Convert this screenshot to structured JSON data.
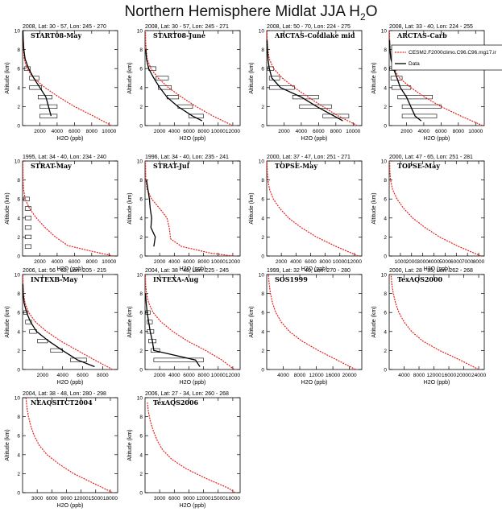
{
  "title_main": "Northern Hemisphere Midlat JJA H",
  "title_sub": "2",
  "title_end": "O",
  "ylabel": "Altitude (km)",
  "xlabel": "H2O (ppb)",
  "colors": {
    "model": "#e8201a",
    "obs": "#000000"
  },
  "legend": {
    "model": "CESM2.F2000climo.C96.C96.mg17.ir",
    "obs": "Data"
  },
  "chart_data": [
    {
      "type": "line",
      "header": "2008, Lat: 30 - 57, Lon: 245 - 270",
      "name": "START08-May",
      "xticks": [
        2000,
        4000,
        6000,
        8000,
        10000
      ],
      "xlim": [
        0,
        11000
      ],
      "ylim": [
        0,
        10
      ],
      "yticks": [
        0,
        2,
        4,
        6,
        8,
        10
      ],
      "model": {
        "x": [
          10300,
          8200,
          6000,
          4200,
          2600,
          1300,
          500,
          200,
          100,
          60,
          40
        ],
        "y": [
          0,
          1,
          2,
          3,
          4,
          5,
          6,
          7,
          8,
          9,
          10
        ]
      },
      "obs": {
        "x": [
          3300,
          3000,
          2700,
          2000,
          1300,
          700,
          300,
          150,
          80,
          50
        ],
        "y": [
          1,
          2,
          3,
          4,
          5,
          6,
          7,
          8,
          9,
          10
        ]
      },
      "boxes": [
        [
          1.0,
          2000,
          4000
        ],
        [
          2.0,
          2000,
          4000
        ],
        [
          3.0,
          1800,
          3400
        ],
        [
          4.0,
          800,
          2200
        ],
        [
          5.0,
          800,
          1900
        ],
        [
          6.0,
          200,
          900
        ]
      ]
    },
    {
      "type": "line",
      "header": "2008, Lat: 30 - 57, Lon: 245 - 271",
      "name": "START08-June",
      "xticks": [
        2000,
        4000,
        6000,
        8000,
        10000,
        12000
      ],
      "xlim": [
        0,
        13000
      ],
      "ylim": [
        0,
        10
      ],
      "yticks": [
        0,
        2,
        4,
        6,
        8,
        10
      ],
      "model": {
        "x": [
          12000,
          9300,
          7000,
          5000,
          3200,
          1800,
          800,
          300,
          150,
          80,
          50
        ],
        "y": [
          0,
          1,
          2,
          3,
          4,
          5,
          6,
          7,
          8,
          9,
          10
        ]
      },
      "obs": {
        "x": [
          7800,
          6500,
          4500,
          3000,
          2000,
          1200,
          500,
          200,
          100
        ],
        "y": [
          0.5,
          1,
          2,
          3,
          4,
          5,
          6,
          7,
          8
        ]
      },
      "boxes": [
        [
          1.0,
          6000,
          8000
        ],
        [
          2.0,
          4500,
          6500
        ],
        [
          3.0,
          3000,
          4600
        ],
        [
          4.0,
          1800,
          3600
        ],
        [
          5.0,
          1500,
          3200
        ],
        [
          6.0,
          500,
          1500
        ]
      ]
    },
    {
      "type": "line",
      "header": "2008, Lat: 50 - 70, Lon: 224 - 275",
      "name": "ARCTAS-Coldlake mid",
      "xticks": [
        2000,
        4000,
        6000,
        8000,
        10000
      ],
      "xlim": [
        0,
        11000
      ],
      "ylim": [
        0,
        10
      ],
      "yticks": [
        0,
        2,
        4,
        6,
        8,
        10
      ],
      "model": {
        "x": [
          10500,
          8300,
          6500,
          4800,
          3200,
          1800,
          800,
          300,
          120,
          60,
          40
        ],
        "y": [
          0,
          1,
          2,
          3,
          4,
          5,
          6,
          7,
          8,
          9,
          10
        ]
      },
      "obs": {
        "x": [
          8800,
          7800,
          5800,
          4000,
          1600,
          600,
          300,
          150,
          80,
          40
        ],
        "y": [
          0.5,
          1,
          2,
          3,
          4,
          5,
          6,
          7,
          8,
          9
        ]
      },
      "boxes": [
        [
          1.0,
          6500,
          9500
        ],
        [
          2.0,
          3800,
          7500
        ],
        [
          3.0,
          3000,
          6000
        ],
        [
          4.0,
          300,
          3200
        ],
        [
          5.0,
          300,
          1500
        ],
        [
          6.0,
          100,
          800
        ]
      ]
    },
    {
      "type": "line",
      "header": "2008, Lat: 33 - 40, Lon: 224 - 255",
      "name": "ARCTAS-Carb",
      "xticks": [
        2000,
        4000,
        6000,
        8000,
        10000
      ],
      "xlim": [
        0,
        11000
      ],
      "ylim": [
        0,
        10
      ],
      "yticks": [
        0,
        2,
        4,
        6,
        8,
        10
      ],
      "model": {
        "x": [
          10800,
          8300,
          6000,
          4100,
          2500,
          1200,
          500,
          200,
          100,
          60,
          40
        ],
        "y": [
          0,
          1,
          2,
          3,
          4,
          5,
          6,
          7,
          8,
          9,
          10
        ]
      },
      "obs": {
        "x": [
          3700,
          3000,
          2500,
          2000,
          1300,
          900,
          500,
          200,
          80,
          40
        ],
        "y": [
          0.5,
          1,
          2,
          3,
          4,
          5,
          6,
          7,
          8,
          9
        ]
      },
      "boxes": [
        [
          1.0,
          1500,
          5500
        ],
        [
          2.0,
          1500,
          6000
        ],
        [
          3.0,
          1000,
          5000
        ],
        [
          4.0,
          300,
          2500
        ],
        [
          5.0,
          200,
          1500
        ],
        [
          6.0,
          50,
          800
        ]
      ]
    },
    {
      "type": "line",
      "header": "1995, Lat: 34 - 40, Lon: 234 - 240",
      "name": "STRAT-May",
      "xticks": [
        2000,
        4000,
        6000,
        8000,
        10000
      ],
      "xlim": [
        0,
        11000
      ],
      "ylim": [
        0,
        10
      ],
      "yticks": [
        0,
        2,
        4,
        6,
        8,
        10
      ],
      "model": {
        "x": [
          10500,
          8000,
          5200,
          3800,
          2600,
          1600,
          800,
          300,
          120,
          60,
          40
        ],
        "y": [
          0,
          0.5,
          1.1,
          2,
          3,
          4,
          5,
          6,
          7,
          8,
          10
        ]
      },
      "obs": null,
      "boxes": [
        [
          1.0,
          300,
          1000
        ],
        [
          2.0,
          300,
          1000
        ],
        [
          3.0,
          300,
          1000
        ],
        [
          4.0,
          300,
          1000
        ],
        [
          5.0,
          300,
          1000
        ],
        [
          6.0,
          100,
          800
        ]
      ]
    },
    {
      "type": "line",
      "header": "1996, Lat: 34 - 40, Lon: 235 - 241",
      "name": "STRAT-Jul",
      "xticks": [
        2000,
        4000,
        6000,
        8000,
        10000,
        12000
      ],
      "xlim": [
        0,
        13000
      ],
      "ylim": [
        0,
        10
      ],
      "yticks": [
        0,
        2,
        4,
        6,
        8,
        10
      ],
      "model": {
        "x": [
          12000,
          9000,
          5000,
          3500,
          3300,
          3000,
          2000,
          900,
          300,
          100,
          50
        ],
        "y": [
          0,
          0.3,
          1.0,
          1.8,
          3,
          4,
          5,
          6,
          7,
          8,
          10
        ]
      },
      "obs": {
        "x": [
          1200,
          1400,
          800,
          900,
          700,
          600,
          400,
          200
        ],
        "y": [
          1,
          2,
          3,
          4,
          5,
          6,
          7,
          8
        ]
      },
      "boxes": []
    },
    {
      "type": "line",
      "header": "2000, Lat: 37 - 47, Lon: 251 - 271",
      "name": "TOPSE-May",
      "xticks": [
        2000,
        4000,
        6000,
        8000,
        10000,
        12000
      ],
      "xlim": [
        0,
        13000
      ],
      "ylim": [
        0,
        10
      ],
      "yticks": [
        0,
        2,
        4,
        6,
        8,
        10
      ],
      "model": {
        "x": [
          12500,
          9500,
          6800,
          4700,
          3000,
          1800,
          900,
          400,
          150,
          70,
          40
        ],
        "y": [
          0,
          1,
          2,
          3,
          4,
          5,
          6,
          7,
          8,
          9,
          10
        ]
      },
      "obs": null,
      "boxes": []
    },
    {
      "type": "line",
      "header": "2000, Lat: 47 - 65, Lon: 251 - 281",
      "name": "TOPSE-May",
      "xticks": [
        1000,
        2000,
        3000,
        4000,
        5000,
        6000,
        7000,
        8000
      ],
      "xlim": [
        0,
        8500
      ],
      "ylim": [
        0,
        10
      ],
      "yticks": [
        0,
        2,
        4,
        6,
        8,
        10
      ],
      "model": {
        "x": [
          8200,
          6200,
          4500,
          3200,
          2100,
          1300,
          700,
          300,
          120,
          60,
          40
        ],
        "y": [
          0,
          1,
          2,
          3,
          4,
          5,
          6,
          7,
          8,
          9,
          10
        ]
      },
      "obs": null,
      "boxes": []
    },
    {
      "type": "line",
      "header": "2006, Lat: 56 - 62, Lon: 205 - 215",
      "name": "INTEXB-May",
      "xticks": [
        2000,
        4000,
        6000,
        8000
      ],
      "xlim": [
        0,
        9500
      ],
      "ylim": [
        0,
        10
      ],
      "yticks": [
        0,
        2,
        4,
        6,
        8,
        10
      ],
      "model": {
        "x": [
          9000,
          7200,
          5500,
          3800,
          2400,
          1300,
          600,
          250,
          100,
          50,
          30
        ],
        "y": [
          0,
          1,
          2,
          3,
          4,
          5,
          6,
          7,
          8,
          9,
          10
        ]
      },
      "obs": {
        "x": [
          7200,
          5500,
          4000,
          2600,
          1400,
          800,
          400,
          150,
          60,
          30
        ],
        "y": [
          0.3,
          1,
          2,
          3,
          4,
          5,
          6,
          7,
          8,
          9
        ]
      },
      "boxes": [
        [
          1.0,
          4800,
          6400
        ],
        [
          2.0,
          2800,
          4000
        ],
        [
          3.0,
          1500,
          2500
        ],
        [
          4.0,
          700,
          1400
        ],
        [
          5.0,
          300,
          900
        ],
        [
          6.0,
          100,
          500
        ]
      ]
    },
    {
      "type": "line",
      "header": "2004, Lat: 38 - 48, Lon: 225 - 245",
      "name": "INTEXA-Aug",
      "xticks": [
        2000,
        4000,
        6000,
        8000,
        10000,
        12000
      ],
      "xlim": [
        0,
        13000
      ],
      "ylim": [
        0,
        10
      ],
      "yticks": [
        0,
        2,
        4,
        6,
        8,
        10
      ],
      "model": {
        "x": [
          12200,
          10500,
          8300,
          5800,
          3800,
          2200,
          1100,
          500,
          200,
          80,
          40
        ],
        "y": [
          0,
          1,
          2,
          3,
          4,
          5,
          6,
          7,
          8,
          9,
          10
        ]
      },
      "obs": {
        "x": [
          7500,
          6900,
          1200,
          1000,
          700,
          500,
          300,
          150,
          60
        ],
        "y": [
          0.3,
          1,
          2,
          3,
          4,
          5,
          6,
          7,
          8
        ]
      },
      "boxes": [
        [
          1.0,
          1200,
          8000
        ],
        [
          2.0,
          800,
          2000
        ],
        [
          3.0,
          500,
          1500
        ],
        [
          4.0,
          300,
          1200
        ],
        [
          5.0,
          300,
          1000
        ],
        [
          6.0,
          100,
          700
        ]
      ]
    },
    {
      "type": "line",
      "header": "1999, Lat: 32 - 40, Lon: 270 - 280",
      "name": "SOS1999",
      "xticks": [
        4000,
        8000,
        12000,
        16000,
        20000
      ],
      "xlim": [
        0,
        23000
      ],
      "ylim": [
        0,
        10
      ],
      "yticks": [
        0,
        2,
        4,
        6,
        8,
        10
      ],
      "model": {
        "x": [
          21500,
          17000,
          12500,
          8500,
          5500,
          3500,
          2200,
          1400,
          900,
          600,
          400
        ],
        "y": [
          0,
          1,
          2,
          3,
          4,
          5,
          6,
          7,
          8,
          9,
          10
        ]
      },
      "obs": null,
      "boxes": []
    },
    {
      "type": "line",
      "header": "2000, Lat: 28 - 35, Lon: 262 - 268",
      "name": "TexAQS2000",
      "xticks": [
        4000,
        8000,
        12000,
        16000,
        20000,
        24000
      ],
      "xlim": [
        0,
        25500
      ],
      "ylim": [
        0,
        10
      ],
      "yticks": [
        0,
        2,
        4,
        6,
        8,
        10
      ],
      "model": {
        "x": [
          24000,
          19000,
          13500,
          9000,
          6000,
          4000,
          2600,
          1700,
          1100,
          700,
          500
        ],
        "y": [
          0,
          1,
          2,
          3,
          4,
          5,
          6,
          7,
          8,
          9,
          10
        ]
      },
      "obs": null,
      "boxes": []
    },
    {
      "type": "line",
      "header": "2004, Lat: 38 - 48, Lon: 280 - 298",
      "name": "NEAQSITCT2004",
      "xticks": [
        3000,
        6000,
        9000,
        12000,
        15000,
        18000
      ],
      "xlim": [
        0,
        19500
      ],
      "ylim": [
        0,
        10
      ],
      "yticks": [
        0,
        2,
        4,
        6,
        8,
        10
      ],
      "model": {
        "x": [
          18500,
          14500,
          10500,
          7500,
          5000,
          3400,
          2400,
          1700,
          1200,
          900,
          700
        ],
        "y": [
          0,
          1,
          2,
          3,
          4,
          5,
          6,
          7,
          8,
          9,
          10
        ]
      },
      "obs": null,
      "boxes": []
    },
    {
      "type": "line",
      "header": "2006, Lat: 27 - 34, Lon: 260 - 268",
      "name": "TexAQS2006",
      "xticks": [
        3000,
        6000,
        9000,
        12000,
        15000,
        18000
      ],
      "xlim": [
        0,
        19500
      ],
      "ylim": [
        0,
        10
      ],
      "yticks": [
        0,
        2,
        4,
        6,
        8,
        10
      ],
      "model": {
        "x": [
          18500,
          17000,
          12500,
          8500,
          5500,
          3600,
          2500,
          1700,
          1100,
          700,
          500
        ],
        "y": [
          0,
          0.5,
          1.5,
          2.5,
          3.5,
          4.5,
          5.5,
          6.5,
          7.5,
          8.5,
          9.5
        ]
      },
      "obs": null,
      "boxes": []
    }
  ]
}
